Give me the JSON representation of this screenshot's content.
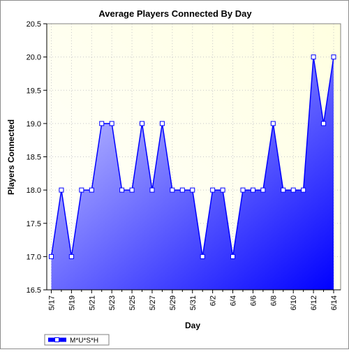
{
  "chart_data": {
    "type": "area",
    "title": "Average Players Connected By Day",
    "xlabel": "Day",
    "ylabel": "Players Connected",
    "ylim": [
      16.5,
      20.5
    ],
    "yticks": [
      "16.5",
      "17.0",
      "17.5",
      "18.0",
      "18.5",
      "19.0",
      "19.5",
      "20.0",
      "20.5"
    ],
    "x": [
      "5/17",
      "5/18",
      "5/19",
      "5/20",
      "5/21",
      "5/22",
      "5/23",
      "5/24",
      "5/25",
      "5/26",
      "5/27",
      "5/28",
      "5/29",
      "5/30",
      "5/31",
      "6/1",
      "6/2",
      "6/3",
      "6/4",
      "6/5",
      "6/6",
      "6/7",
      "6/8",
      "6/9",
      "6/10",
      "6/11",
      "6/12",
      "6/13",
      "6/14"
    ],
    "xtick_labels": [
      "5/17",
      "5/19",
      "5/21",
      "5/23",
      "5/25",
      "5/27",
      "5/29",
      "5/31",
      "6/2",
      "6/4",
      "6/6",
      "6/8",
      "6/10",
      "6/12",
      "6/14"
    ],
    "series": [
      {
        "name": "M*U*S*H",
        "values": [
          17,
          18,
          17,
          18,
          18,
          19,
          19,
          18,
          18,
          19,
          18,
          19,
          18,
          18,
          18,
          17,
          18,
          18,
          17,
          18,
          18,
          18,
          19,
          18,
          18,
          18,
          20,
          19,
          20
        ]
      }
    ],
    "grid": true,
    "legend_position": "bottom-left",
    "colors": {
      "series_line": "#0000ff",
      "fill_light": "#c8c8ff",
      "fill_dark": "#0000ff",
      "plot_bg_light": "#ffffe6",
      "plot_bg_white": "#ffffff",
      "grid": "#c8c8c8"
    }
  }
}
